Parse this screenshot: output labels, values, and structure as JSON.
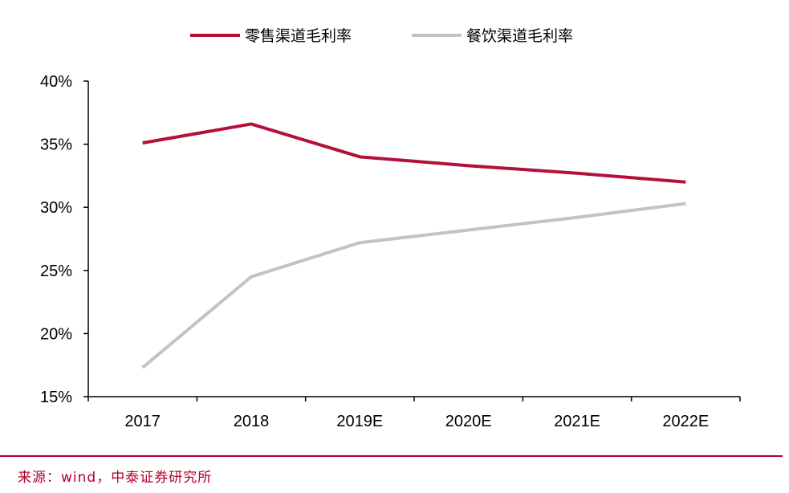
{
  "chart_data": {
    "type": "line",
    "categories": [
      "2017",
      "2018",
      "2019E",
      "2020E",
      "2021E",
      "2022E"
    ],
    "series": [
      {
        "name": "零售渠道毛利率",
        "color": "#b5103a",
        "values": [
          35.1,
          36.6,
          34.0,
          33.3,
          32.7,
          32.0
        ]
      },
      {
        "name": "餐饮渠道毛利率",
        "color": "#c3c3c3",
        "values": [
          17.3,
          24.5,
          27.2,
          28.2,
          29.2,
          30.3
        ]
      }
    ],
    "ylim": [
      15,
      40
    ],
    "yticks": [
      "15%",
      "20%",
      "25%",
      "30%",
      "35%",
      "40%"
    ],
    "legend_position": "top",
    "grid": false
  },
  "source": "来源：wind，中泰证券研究所"
}
